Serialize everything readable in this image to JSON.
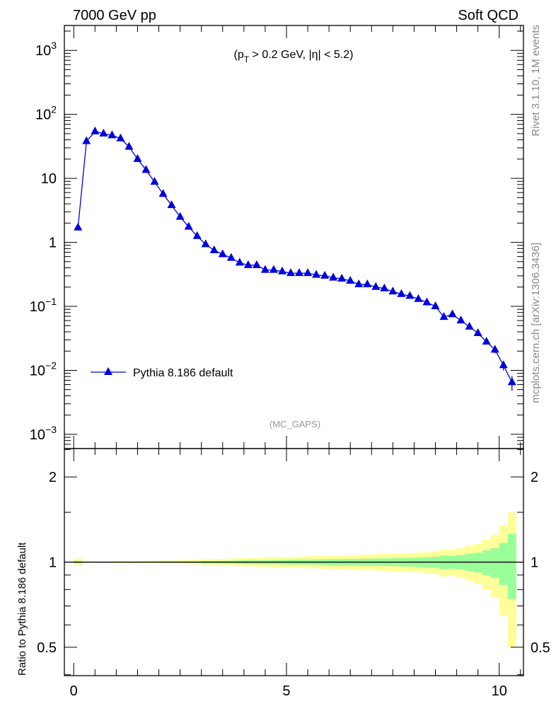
{
  "header": {
    "left": "7000 GeV pp",
    "right": "Soft QCD"
  },
  "side_labels": {
    "rivet": "Rivet 3.1.10,  1M events",
    "mcplots": "mcplots.cern.ch [arXiv:1306.3436]"
  },
  "chart_data": {
    "type": "line",
    "title": "(p_T > 0.2 GeV, |η| < 5.2)",
    "title_parts": {
      "pre": "(p",
      "sub": "T",
      "post": " > 0.2 GeV, |η| < 5.2)"
    },
    "analysis_label": "(MC_GAPS)",
    "legend": {
      "entries": [
        "Pythia 8.186 default"
      ],
      "placement": "lower-left"
    },
    "marker_color": "#0000dd",
    "xlim": [
      -0.22,
      10.57
    ],
    "ylim": [
      0.0006,
      2450
    ],
    "yscale": "log",
    "x_ticks": [
      0,
      5,
      10
    ],
    "x_tick_labels": [
      "0",
      "5",
      "10"
    ],
    "y_ticks": [
      1000,
      100,
      10,
      1,
      0.1,
      0.01,
      0.001
    ],
    "y_tick_labels": [
      {
        "base": "10",
        "exp": "3"
      },
      {
        "base": "10",
        "exp": "2"
      },
      {
        "base": "10",
        "exp": ""
      },
      {
        "base": "1",
        "exp": ""
      },
      {
        "base": "10",
        "exp": "−1"
      },
      {
        "base": "10",
        "exp": "−2"
      },
      {
        "base": "10",
        "exp": "−3"
      }
    ],
    "series": [
      {
        "name": "Pythia 8.186 default",
        "x": [
          0.1,
          0.3,
          0.5,
          0.7,
          0.9,
          1.1,
          1.3,
          1.5,
          1.7,
          1.9,
          2.1,
          2.3,
          2.5,
          2.7,
          2.9,
          3.1,
          3.3,
          3.5,
          3.7,
          3.9,
          4.1,
          4.3,
          4.5,
          4.7,
          4.9,
          5.1,
          5.3,
          5.5,
          5.7,
          5.9,
          6.1,
          6.3,
          6.5,
          6.7,
          6.9,
          7.1,
          7.3,
          7.5,
          7.7,
          7.9,
          8.1,
          8.3,
          8.5,
          8.7,
          8.9,
          9.1,
          9.3,
          9.5,
          9.7,
          9.9,
          10.1,
          10.3
        ],
        "y": [
          1.7,
          38,
          54,
          50,
          47,
          42,
          31,
          20,
          13.5,
          8.8,
          5.7,
          3.8,
          2.5,
          1.75,
          1.25,
          0.93,
          0.75,
          0.65,
          0.57,
          0.48,
          0.44,
          0.44,
          0.37,
          0.37,
          0.35,
          0.33,
          0.33,
          0.33,
          0.31,
          0.3,
          0.28,
          0.27,
          0.25,
          0.22,
          0.22,
          0.2,
          0.19,
          0.17,
          0.155,
          0.145,
          0.13,
          0.115,
          0.1,
          0.068,
          0.075,
          0.06,
          0.048,
          0.038,
          0.028,
          0.021,
          0.012,
          0.0065
        ]
      }
    ],
    "ratio": {
      "ylabel": "Ratio to Pythia 8.186 default",
      "ylim": [
        0.397,
        2.52
      ],
      "yscale": "log",
      "y_ticks": [
        0.5,
        1,
        2
      ],
      "y_tick_labels": [
        "0.5",
        "1",
        "2"
      ],
      "stat_err": [
        0.01,
        0.002,
        0.002,
        0.002,
        0.002,
        0.002,
        0.002,
        0.002,
        0.002,
        0.002,
        0.005,
        0.005,
        0.005,
        0.006,
        0.007,
        0.01,
        0.01,
        0.011,
        0.012,
        0.013,
        0.015,
        0.015,
        0.016,
        0.017,
        0.018,
        0.02,
        0.02,
        0.021,
        0.022,
        0.023,
        0.025,
        0.025,
        0.026,
        0.027,
        0.028,
        0.03,
        0.031,
        0.032,
        0.034,
        0.036,
        0.04,
        0.042,
        0.045,
        0.055,
        0.052,
        0.06,
        0.07,
        0.08,
        0.1,
        0.12,
        0.17,
        0.26
      ],
      "total_err": [
        0.03,
        0.005,
        0.005,
        0.005,
        0.006,
        0.007,
        0.008,
        0.009,
        0.01,
        0.011,
        0.012,
        0.013,
        0.015,
        0.017,
        0.02,
        0.022,
        0.025,
        0.027,
        0.03,
        0.032,
        0.035,
        0.036,
        0.038,
        0.04,
        0.042,
        0.044,
        0.046,
        0.048,
        0.05,
        0.052,
        0.055,
        0.057,
        0.06,
        0.062,
        0.064,
        0.066,
        0.068,
        0.07,
        0.073,
        0.076,
        0.08,
        0.085,
        0.09,
        0.11,
        0.105,
        0.12,
        0.14,
        0.16,
        0.2,
        0.25,
        0.35,
        0.5
      ],
      "band_colors": {
        "stat": "#99ff99",
        "total": "#ffff99"
      }
    }
  }
}
